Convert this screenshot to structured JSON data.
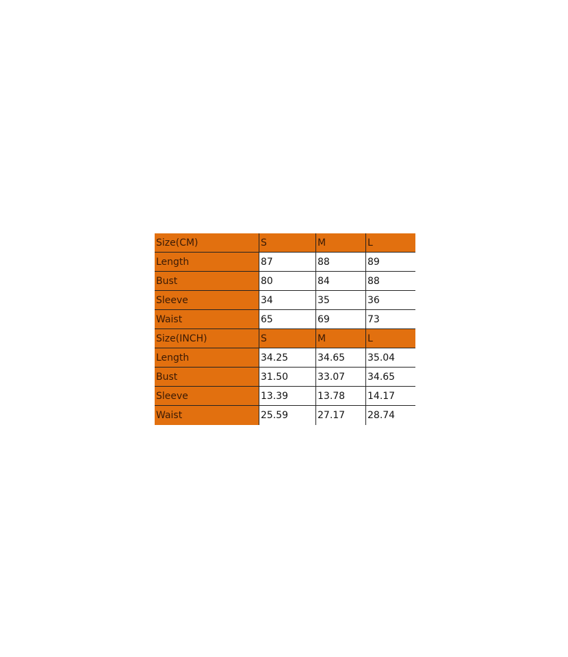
{
  "accent_color": "#E2700F",
  "sections": [
    {
      "header": [
        "Size(CM)",
        "S",
        "M",
        "L"
      ],
      "rows": [
        [
          "Length",
          "87",
          "88",
          "89"
        ],
        [
          "Bust",
          "80",
          "84",
          "88"
        ],
        [
          "Sleeve",
          "34",
          "35",
          "36"
        ],
        [
          "Waist",
          "65",
          "69",
          "73"
        ]
      ]
    },
    {
      "header": [
        "Size(INCH)",
        "S",
        "M",
        "L"
      ],
      "rows": [
        [
          "Length",
          "34.25",
          "34.65",
          "35.04"
        ],
        [
          "Bust",
          "31.50",
          "33.07",
          "34.65"
        ],
        [
          "Sleeve",
          "13.39",
          "13.78",
          "14.17"
        ],
        [
          "Waist",
          "25.59",
          "27.17",
          "28.74"
        ]
      ]
    }
  ]
}
